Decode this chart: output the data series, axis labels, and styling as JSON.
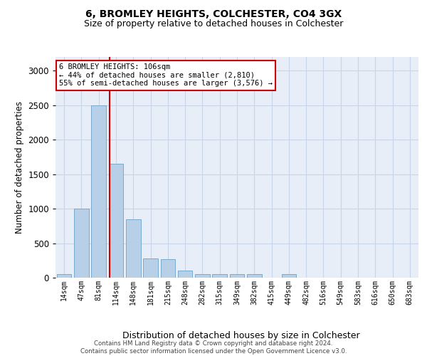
{
  "title1": "6, BROMLEY HEIGHTS, COLCHESTER, CO4 3GX",
  "title2": "Size of property relative to detached houses in Colchester",
  "xlabel": "Distribution of detached houses by size in Colchester",
  "ylabel": "Number of detached properties",
  "categories": [
    "14sqm",
    "47sqm",
    "81sqm",
    "114sqm",
    "148sqm",
    "181sqm",
    "215sqm",
    "248sqm",
    "282sqm",
    "315sqm",
    "349sqm",
    "382sqm",
    "415sqm",
    "449sqm",
    "482sqm",
    "516sqm",
    "549sqm",
    "583sqm",
    "616sqm",
    "650sqm",
    "683sqm"
  ],
  "values": [
    50,
    1000,
    2500,
    1650,
    850,
    280,
    270,
    100,
    55,
    55,
    55,
    50,
    0,
    50,
    0,
    0,
    0,
    0,
    0,
    0,
    0
  ],
  "bar_color": "#b8cfe8",
  "bar_edge_color": "#7aaad0",
  "red_line_x": 2.63,
  "annotation_line1": "6 BROMLEY HEIGHTS: 106sqm",
  "annotation_line2": "← 44% of detached houses are smaller (2,810)",
  "annotation_line3": "55% of semi-detached houses are larger (3,576) →",
  "annotation_box_facecolor": "#ffffff",
  "annotation_box_edgecolor": "#cc0000",
  "ylim": [
    0,
    3200
  ],
  "yticks": [
    0,
    500,
    1000,
    1500,
    2000,
    2500,
    3000
  ],
  "grid_color": "#c8d4e8",
  "background_color": "#e8eef8",
  "footer1": "Contains HM Land Registry data © Crown copyright and database right 2024.",
  "footer2": "Contains public sector information licensed under the Open Government Licence v3.0."
}
